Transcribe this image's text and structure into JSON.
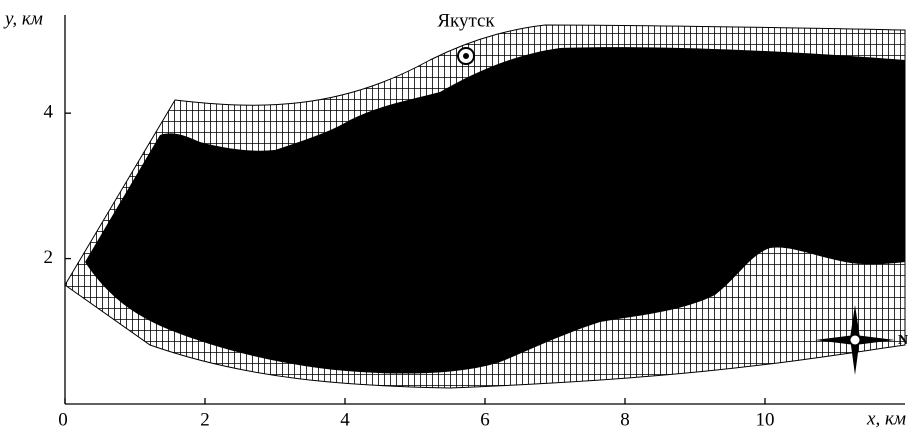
{
  "chart_data": {
    "type": "map",
    "xlabel": "x, км",
    "ylabel": "y, км",
    "annotations": [
      "Якутск",
      "N"
    ],
    "xlim": [
      0,
      12
    ],
    "ylim": [
      0,
      5.35
    ],
    "xticks": [
      0,
      2,
      4,
      6,
      8,
      10
    ],
    "yticks": [
      2,
      4
    ]
  }
}
